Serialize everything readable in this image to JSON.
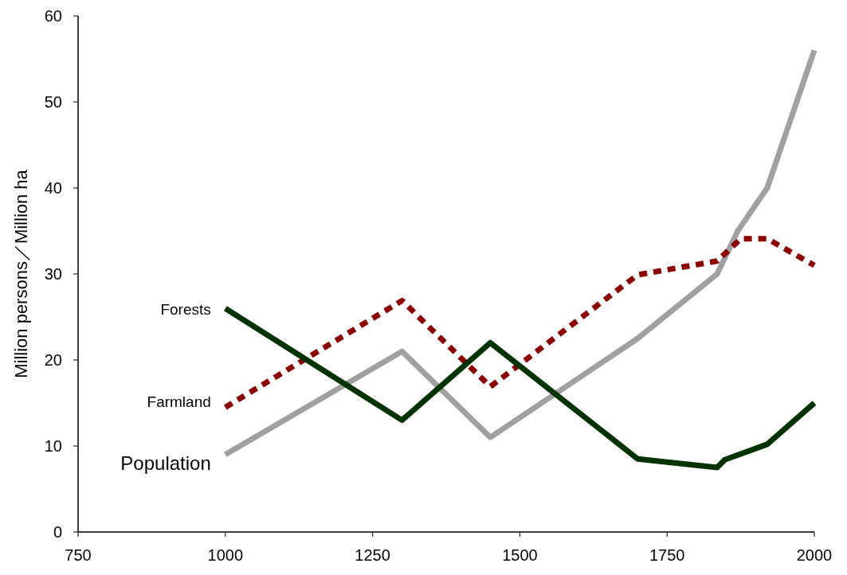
{
  "chart_data": {
    "type": "line",
    "ylabel": "Million persons／Million ha",
    "xlim": [
      750,
      2000
    ],
    "xticks": [
      750,
      1000,
      1250,
      1500,
      1750,
      2000
    ],
    "ylim": [
      0,
      60
    ],
    "yticks": [
      0,
      10,
      20,
      30,
      40,
      50,
      60
    ],
    "grid": false,
    "legend": false,
    "marker": "none",
    "series": [
      {
        "name": "Population",
        "color": "#a0a0a0",
        "line_style": "solid",
        "x": [
          1000,
          1300,
          1450,
          1700,
          1835,
          1870,
          1920,
          2000
        ],
        "values": [
          9,
          21,
          11,
          22.5,
          30,
          35,
          40,
          56
        ]
      },
      {
        "name": "Farmland",
        "color": "#8b0000",
        "line_style": "dashed",
        "x": [
          1000,
          1300,
          1450,
          1700,
          1835,
          1875,
          1920,
          2000
        ],
        "values": [
          14.5,
          26.9,
          16.9,
          29.9,
          31.5,
          34.1,
          34.1,
          31
        ]
      },
      {
        "name": "Forests",
        "color": "#003300",
        "line_style": "solid",
        "x": [
          1000,
          1300,
          1450,
          1700,
          1835,
          1848,
          1920,
          2000
        ],
        "values": [
          26,
          13,
          22,
          8.5,
          7.5,
          8.4,
          10.2,
          15
        ]
      }
    ]
  }
}
